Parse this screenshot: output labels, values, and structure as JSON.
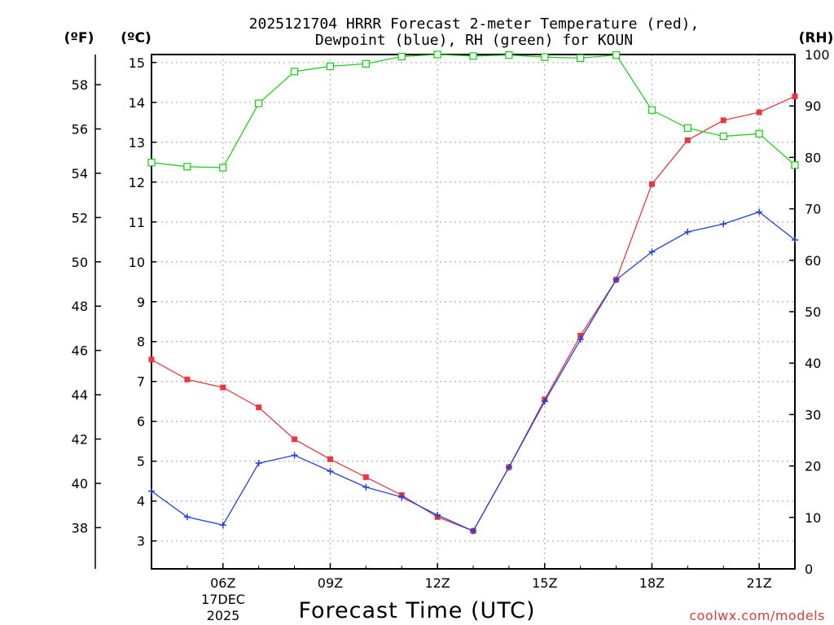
{
  "chart_data": {
    "type": "line",
    "title": [
      "2025121704 HRRR Forecast 2-meter Temperature (red),",
      "Dewpoint (blue), RH (green) for KOUN"
    ],
    "xlabel": "Forecast Time (UTC)",
    "credit": "coolwx.com/models",
    "axis_units": {
      "fahrenheit": "(ºF)",
      "celsius": "(ºC)",
      "rh": "(RH)"
    },
    "x": [
      4,
      5,
      6,
      7,
      8,
      9,
      10,
      11,
      12,
      13,
      14,
      15,
      16,
      17,
      18,
      19,
      20,
      21,
      22
    ],
    "xlim": [
      4,
      22
    ],
    "xticks": [
      {
        "x": 6,
        "label": "06Z"
      },
      {
        "x": 9,
        "label": "09Z"
      },
      {
        "x": 12,
        "label": "12Z"
      },
      {
        "x": 15,
        "label": "15Z"
      },
      {
        "x": 18,
        "label": "18Z"
      },
      {
        "x": 21,
        "label": "21Z"
      }
    ],
    "date_label": [
      "17DEC",
      "2025"
    ],
    "celsius_axis": {
      "lim": [
        2.3,
        15.2
      ],
      "ticks": [
        3,
        4,
        5,
        6,
        7,
        8,
        9,
        10,
        11,
        12,
        13,
        14,
        15
      ]
    },
    "fahrenheit_axis": {
      "ticks": [
        38,
        40,
        42,
        44,
        46,
        48,
        50,
        52,
        54,
        56,
        58
      ]
    },
    "rh_axis": {
      "lim": [
        0,
        100
      ],
      "ticks": [
        0,
        10,
        20,
        30,
        40,
        50,
        60,
        70,
        80,
        90,
        100
      ]
    },
    "series": [
      {
        "name": "Temperature",
        "axis": "celsius",
        "color": "#e8383d",
        "marker": "filled-square",
        "values": [
          7.55,
          7.05,
          6.85,
          6.35,
          5.55,
          5.05,
          4.6,
          4.15,
          3.6,
          3.25,
          4.85,
          6.55,
          8.15,
          9.55,
          11.95,
          13.05,
          13.55,
          13.75,
          14.15
        ]
      },
      {
        "name": "Dewpoint",
        "axis": "celsius",
        "color": "#2040e0",
        "marker": "plus",
        "values": [
          4.25,
          3.6,
          3.4,
          4.95,
          5.15,
          4.75,
          4.35,
          4.1,
          3.65,
          3.25,
          4.85,
          6.5,
          8.05,
          9.55,
          10.25,
          10.75,
          10.95,
          11.25,
          10.55
        ]
      },
      {
        "name": "RH",
        "axis": "rh",
        "color": "#20d020",
        "marker": "open-square",
        "values": [
          79,
          78.2,
          78,
          90.5,
          96.7,
          97.7,
          98.2,
          99.6,
          100,
          99.7,
          99.9,
          99.5,
          99.3,
          99.9,
          89.2,
          85.7,
          84.1,
          84.6,
          78.5
        ]
      }
    ]
  }
}
